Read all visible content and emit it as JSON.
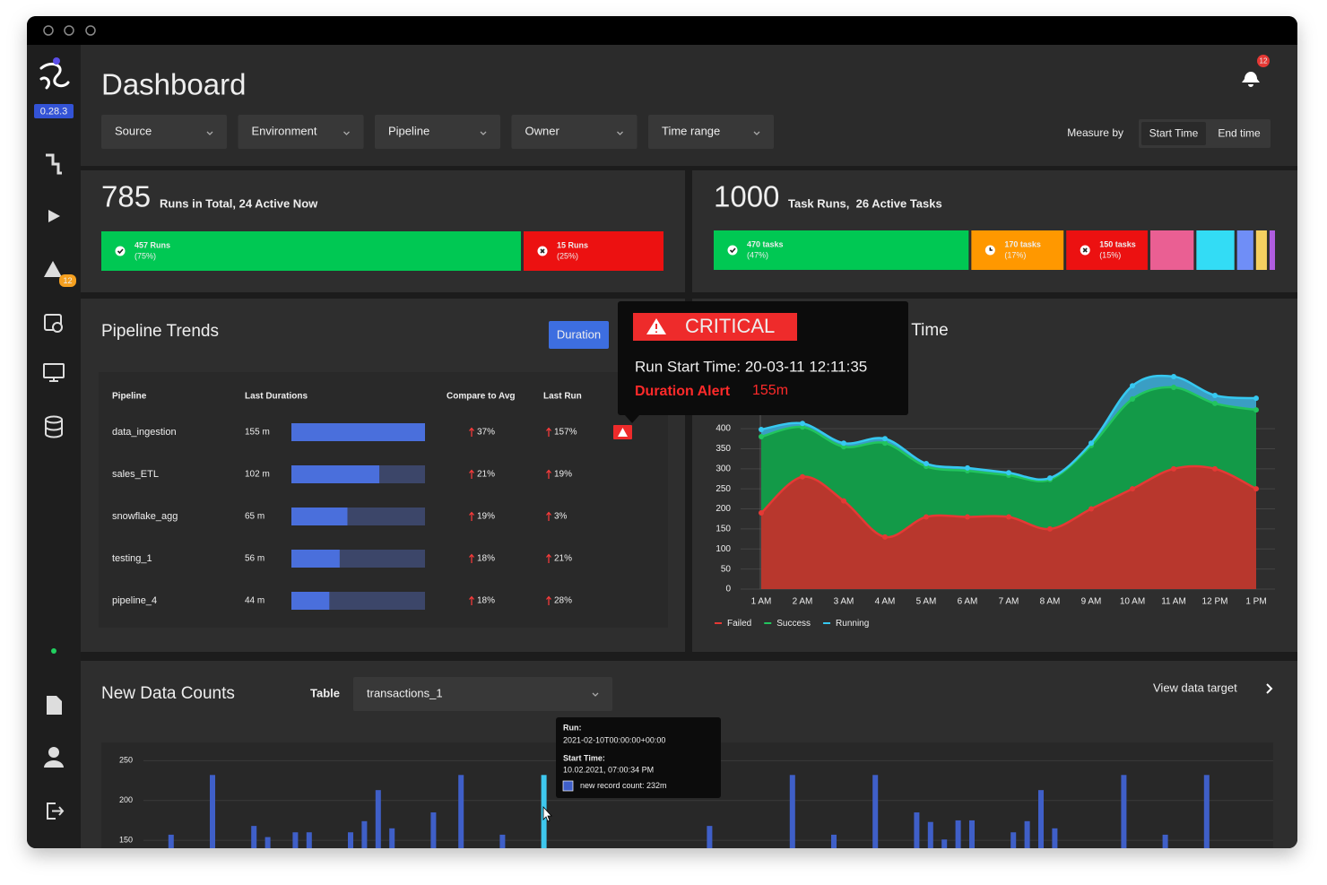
{
  "app": {
    "version": "0.28.3",
    "alerts_badge": "12"
  },
  "header": {
    "title": "Dashboard",
    "notifications_badge": "12",
    "filters": [
      "Source",
      "Environment",
      "Pipeline",
      "Owner",
      "Time range"
    ],
    "measure_by": "Measure by",
    "measure_options": [
      "Start Time",
      "End time"
    ]
  },
  "runs_summary": {
    "total": "785",
    "caption": "Runs in Total, 24 Active Now",
    "segments": [
      {
        "label": "457 Runs",
        "value": 75,
        "value_label": "(75%)",
        "color": "#00c853",
        "icon": "check"
      },
      {
        "label": "15 Runs",
        "value": 25,
        "value_label": "(25%)",
        "color": "#ec1111",
        "icon": "cross"
      }
    ]
  },
  "tasks_summary": {
    "total": "1000",
    "caption": "Task Runs,  26 Active Tasks",
    "segments": [
      {
        "label": "470 tasks",
        "value": 47,
        "value_label": "(47%)",
        "color": "#00c853",
        "icon": "check"
      },
      {
        "label": "170 tasks",
        "value": 17,
        "value_label": "(17%)",
        "color": "#ff9800",
        "icon": "clock"
      },
      {
        "label": "150 tasks",
        "value": 15,
        "value_label": "(15%)",
        "color": "#ec1111",
        "icon": "cross"
      },
      {
        "value": 8,
        "color": "#ea5f93"
      },
      {
        "value": 7,
        "color": "#33dcf5"
      },
      {
        "value": 3,
        "color": "#6f8ef7"
      },
      {
        "value": 2,
        "color": "#f5cf60"
      },
      {
        "value": 1,
        "color": "#b05de0"
      }
    ]
  },
  "pipeline_trends": {
    "title": "Pipeline Trends",
    "button": "Duration",
    "columns": [
      "Pipeline",
      "Last Durations",
      "Compare to Avg",
      "Last Run"
    ],
    "rows": [
      {
        "name": "data_ingestion",
        "duration": 155,
        "duration_label": "155 m",
        "compare": "37%",
        "last_run": "157%",
        "alert": true
      },
      {
        "name": "sales_ETL",
        "duration": 102,
        "duration_label": "102 m",
        "compare": "21%",
        "last_run": "19%",
        "alert": false
      },
      {
        "name": "snowflake_agg",
        "duration": 65,
        "duration_label": "65 m",
        "compare": "19%",
        "last_run": "3%",
        "alert": false
      },
      {
        "name": "testing_1",
        "duration": 56,
        "duration_label": "56 m",
        "compare": "18%",
        "last_run": "21%",
        "alert": false
      },
      {
        "name": "pipeline_4",
        "duration": 44,
        "duration_label": "44 m",
        "compare": "18%",
        "last_run": "28%",
        "alert": false
      }
    ]
  },
  "alert_tooltip": {
    "title": "CRITICAL",
    "run_start": "Run Start Time: 20-03-11 12:11:35",
    "alert_label": "Duration Alert",
    "alert_value": "155m"
  },
  "chart_data": [
    {
      "type": "area",
      "stacked": true,
      "title": "t Time",
      "categories": [
        "1 AM",
        "2 AM",
        "3 AM",
        "4 AM",
        "5 AM",
        "6 AM",
        "7 AM",
        "8 AM",
        "9 AM",
        "10 AM",
        "11 AM",
        "12 PM",
        "1 PM"
      ],
      "series": [
        {
          "name": "Failed",
          "color": "#e53935",
          "fill": "#b8372d",
          "values": [
            190,
            280,
            220,
            130,
            180,
            180,
            180,
            150,
            200,
            250,
            300,
            300,
            250
          ]
        },
        {
          "name": "Success",
          "color": "#22c55e",
          "fill": "#139a48",
          "values": [
            190,
            124,
            135,
            234,
            126,
            115,
            104,
            123,
            158,
            224,
            203,
            163,
            197
          ]
        },
        {
          "name": "Running",
          "color": "#36c8f0",
          "fill": "#3a9ec4",
          "values": [
            18,
            9,
            9,
            11,
            7,
            7,
            6,
            4,
            6,
            33,
            27,
            20,
            29
          ]
        }
      ],
      "ylim": [
        0,
        550
      ],
      "yticks": [
        0,
        50,
        100,
        150,
        200,
        250,
        300,
        350,
        400
      ],
      "grid": true,
      "legend": "bottom-left"
    },
    {
      "type": "bar",
      "title": "New Data Counts",
      "table_label": "Table",
      "table": "transactions_1",
      "link": "View data target",
      "categories": [
        null,
        null,
        null,
        null,
        null,
        null,
        null,
        null,
        null,
        null,
        null,
        null,
        null,
        null,
        null,
        null,
        null,
        null,
        null,
        null,
        null,
        null,
        null,
        null,
        null,
        null,
        null,
        null,
        null,
        null,
        null,
        null,
        null,
        null,
        null,
        null,
        null,
        null,
        null,
        null,
        null,
        null,
        null,
        null,
        null,
        null,
        null,
        null,
        null,
        null,
        null,
        null,
        null,
        null,
        null,
        null,
        null,
        null,
        null,
        null,
        null,
        null,
        null,
        null,
        null,
        null,
        null,
        null,
        null,
        null,
        null,
        null,
        null,
        null,
        null,
        null,
        null,
        null,
        null,
        null,
        null
      ],
      "values": [
        null,
        157,
        null,
        null,
        232,
        null,
        null,
        168,
        154,
        null,
        160,
        160,
        null,
        null,
        160,
        174,
        213,
        165,
        null,
        null,
        185,
        null,
        232,
        null,
        null,
        157,
        null,
        null,
        232,
        null,
        null,
        null,
        null,
        null,
        null,
        null,
        null,
        null,
        null,
        null,
        168,
        null,
        null,
        null,
        null,
        null,
        232,
        null,
        null,
        157,
        null,
        null,
        232,
        null,
        null,
        185,
        173,
        151,
        175,
        175,
        null,
        null,
        160,
        174,
        213,
        165,
        null,
        null,
        null,
        null,
        232,
        null,
        null,
        157,
        null,
        null,
        232,
        null,
        null,
        null,
        null
      ],
      "color": "#3f5fc8",
      "highlight": 28,
      "highlight_color": "#3ec8ee",
      "ylim": [
        140,
        265
      ],
      "yticks": [
        150,
        200,
        250
      ],
      "grid": true,
      "tooltip": {
        "run_label": "Run:",
        "run": "2021-02-10T00:00:00+00:00",
        "start_label": "Start Time:",
        "start": "10.02.2021, 07:00:34 PM",
        "entry": "new record count: 232m"
      }
    }
  ]
}
